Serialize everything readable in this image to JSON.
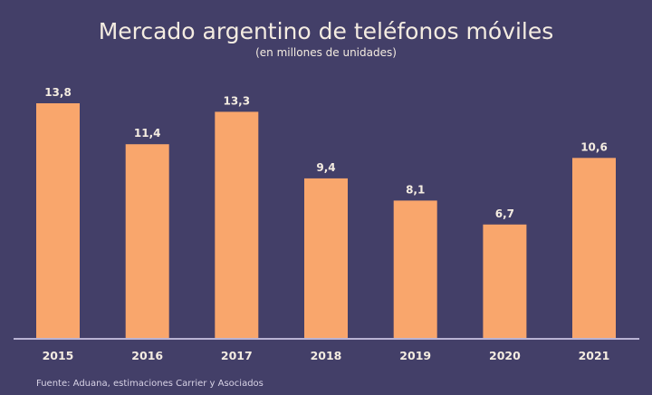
{
  "chart_data": {
    "type": "bar",
    "title": "Mercado argentino de teléfonos móviles",
    "subtitle": "(en millones de unidades)",
    "xlabel": "",
    "ylabel": "",
    "categories": [
      "2015",
      "2016",
      "2017",
      "2018",
      "2019",
      "2020",
      "2021"
    ],
    "values": [
      13.8,
      11.4,
      13.3,
      9.4,
      8.1,
      6.7,
      10.6
    ],
    "value_labels": [
      "13,8",
      "11,4",
      "13,3",
      "9,4",
      "8,1",
      "6,7",
      "10,6"
    ],
    "ylim": [
      0,
      14.5
    ],
    "grid": false,
    "legend": "none",
    "source": "Fuente: Aduana, estimaciones Carrier y Asociados",
    "colors": {
      "background": "#433f68",
      "bar": "#f9a66c",
      "text": "#f4ece1",
      "axis": "#b9b3d3"
    }
  }
}
